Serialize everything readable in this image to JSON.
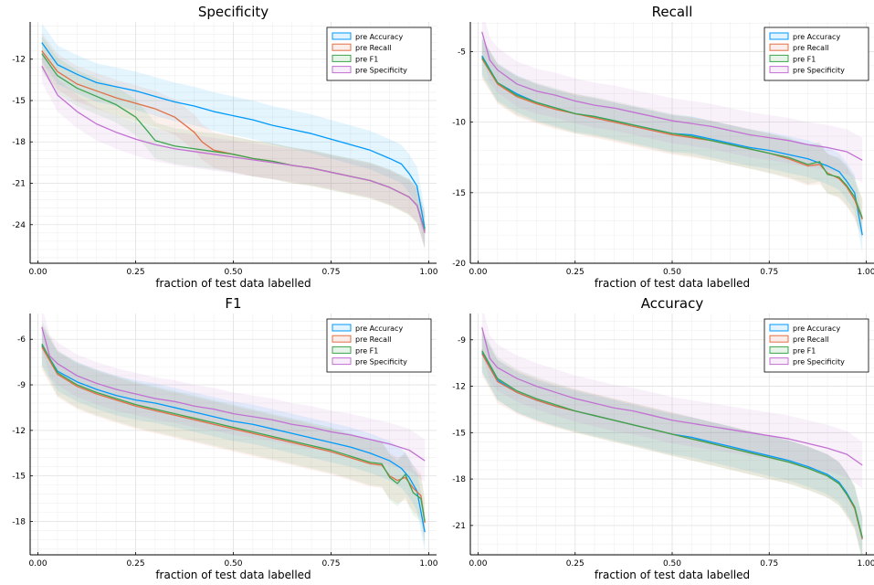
{
  "colors": {
    "pre Accuracy": "#009AFA",
    "pre Recall": "#E26F46",
    "pre F1": "#3DA44D",
    "pre Specificity": "#C271D2"
  },
  "chart_data": [
    {
      "type": "line",
      "title": "Specificity",
      "xlabel": "fraction of test data labelled",
      "ylabel": "",
      "xlim": [
        -0.02,
        1.02
      ],
      "ylim": [
        -26.8,
        -9.3
      ],
      "xticks": [
        0.0,
        0.25,
        0.5,
        0.75,
        1.0
      ],
      "xtick_labels": [
        "0.00",
        "0.25",
        "0.50",
        "0.75",
        "1.00"
      ],
      "yticks": [
        -24,
        -21,
        -18,
        -15,
        -12
      ],
      "ytick_labels": [
        "-24",
        "-21",
        "-18",
        "-15",
        "-12"
      ],
      "grid": true,
      "legend": "top-right",
      "series": [
        {
          "name": "pre Accuracy",
          "band": 1.4,
          "x": [
            0.01,
            0.05,
            0.1,
            0.15,
            0.2,
            0.25,
            0.3,
            0.35,
            0.4,
            0.45,
            0.5,
            0.55,
            0.6,
            0.65,
            0.7,
            0.75,
            0.8,
            0.85,
            0.9,
            0.93,
            0.95,
            0.97,
            0.99
          ],
          "y": [
            -10.8,
            -12.4,
            -13.1,
            -13.7,
            -14.0,
            -14.3,
            -14.7,
            -15.1,
            -15.4,
            -15.8,
            -16.1,
            -16.4,
            -16.8,
            -17.1,
            -17.4,
            -17.8,
            -18.2,
            -18.6,
            -19.2,
            -19.6,
            -20.3,
            -21.2,
            -24.3
          ]
        },
        {
          "name": "pre Recall",
          "band": 1.3,
          "x": [
            0.01,
            0.05,
            0.1,
            0.15,
            0.2,
            0.25,
            0.3,
            0.35,
            0.4,
            0.42,
            0.45,
            0.5,
            0.55,
            0.6,
            0.65,
            0.7,
            0.75,
            0.8,
            0.85,
            0.9,
            0.95,
            0.97,
            0.99
          ],
          "y": [
            -11.4,
            -12.9,
            -13.8,
            -14.3,
            -14.8,
            -15.2,
            -15.6,
            -16.2,
            -17.3,
            -18.0,
            -18.6,
            -18.9,
            -19.2,
            -19.4,
            -19.7,
            -19.9,
            -20.2,
            -20.5,
            -20.8,
            -21.3,
            -22.0,
            -22.6,
            -24.5
          ]
        },
        {
          "name": "pre F1",
          "band": 1.3,
          "x": [
            0.01,
            0.05,
            0.1,
            0.15,
            0.2,
            0.25,
            0.28,
            0.3,
            0.35,
            0.4,
            0.45,
            0.5,
            0.55,
            0.6,
            0.65,
            0.7,
            0.75,
            0.8,
            0.85,
            0.9,
            0.95,
            0.97,
            0.99
          ],
          "y": [
            -11.6,
            -13.2,
            -14.1,
            -14.7,
            -15.3,
            -16.2,
            -17.2,
            -17.9,
            -18.3,
            -18.5,
            -18.7,
            -18.9,
            -19.2,
            -19.4,
            -19.7,
            -19.9,
            -20.2,
            -20.5,
            -20.8,
            -21.3,
            -22.0,
            -22.6,
            -24.4
          ]
        },
        {
          "name": "pre Specificity",
          "band": 1.2,
          "x": [
            0.01,
            0.05,
            0.1,
            0.15,
            0.2,
            0.25,
            0.3,
            0.35,
            0.4,
            0.45,
            0.5,
            0.55,
            0.6,
            0.65,
            0.7,
            0.75,
            0.8,
            0.85,
            0.9,
            0.95,
            0.97,
            0.99
          ],
          "y": [
            -12.5,
            -14.6,
            -15.8,
            -16.7,
            -17.3,
            -17.8,
            -18.2,
            -18.5,
            -18.7,
            -18.9,
            -19.1,
            -19.3,
            -19.5,
            -19.7,
            -19.9,
            -20.2,
            -20.5,
            -20.8,
            -21.3,
            -22.0,
            -22.6,
            -24.6
          ]
        }
      ]
    },
    {
      "type": "line",
      "title": "Recall",
      "xlabel": "fraction of test data labelled",
      "ylabel": "",
      "xlim": [
        -0.02,
        1.02
      ],
      "ylim": [
        -20,
        -2.9
      ],
      "xticks": [
        0.0,
        0.25,
        0.5,
        0.75,
        1.0
      ],
      "xtick_labels": [
        "0.00",
        "0.25",
        "0.50",
        "0.75",
        "1.00"
      ],
      "yticks": [
        -20,
        -15,
        -10,
        -5
      ],
      "ytick_labels": [
        "-20",
        "-15",
        "-10",
        "-5"
      ],
      "grid": true,
      "legend": "top-right",
      "series": [
        {
          "name": "pre Accuracy",
          "band": 1.3,
          "x": [
            0.01,
            0.05,
            0.1,
            0.15,
            0.2,
            0.25,
            0.3,
            0.35,
            0.4,
            0.45,
            0.5,
            0.55,
            0.6,
            0.65,
            0.7,
            0.75,
            0.8,
            0.85,
            0.9,
            0.93,
            0.95,
            0.97,
            0.99
          ],
          "y": [
            -5.3,
            -7.2,
            -8.0,
            -8.6,
            -9.0,
            -9.4,
            -9.6,
            -9.9,
            -10.2,
            -10.5,
            -10.8,
            -10.9,
            -11.2,
            -11.5,
            -11.8,
            -12.0,
            -12.3,
            -12.6,
            -13.1,
            -13.5,
            -14.2,
            -15.0,
            -18.0
          ]
        },
        {
          "name": "pre Recall",
          "band": 1.4,
          "x": [
            0.01,
            0.05,
            0.1,
            0.15,
            0.2,
            0.25,
            0.3,
            0.35,
            0.4,
            0.45,
            0.5,
            0.55,
            0.6,
            0.65,
            0.7,
            0.75,
            0.8,
            0.85,
            0.88,
            0.9,
            0.93,
            0.95,
            0.97,
            0.99
          ],
          "y": [
            -5.5,
            -7.3,
            -8.2,
            -8.7,
            -9.1,
            -9.4,
            -9.7,
            -10.0,
            -10.3,
            -10.6,
            -10.9,
            -11.1,
            -11.3,
            -11.6,
            -11.9,
            -12.2,
            -12.6,
            -13.1,
            -13.0,
            -13.6,
            -14.0,
            -14.6,
            -15.5,
            -16.9
          ]
        },
        {
          "name": "pre F1",
          "band": 1.4,
          "x": [
            0.01,
            0.05,
            0.1,
            0.15,
            0.2,
            0.25,
            0.3,
            0.35,
            0.4,
            0.45,
            0.5,
            0.55,
            0.6,
            0.65,
            0.7,
            0.75,
            0.8,
            0.85,
            0.88,
            0.9,
            0.93,
            0.95,
            0.97,
            0.99
          ],
          "y": [
            -5.4,
            -7.2,
            -8.1,
            -8.6,
            -9.0,
            -9.4,
            -9.6,
            -9.9,
            -10.2,
            -10.5,
            -10.8,
            -11.0,
            -11.3,
            -11.6,
            -11.9,
            -12.2,
            -12.5,
            -13.0,
            -12.8,
            -13.7,
            -13.9,
            -14.5,
            -15.3,
            -16.8
          ]
        },
        {
          "name": "pre Specificity",
          "band": 1.6,
          "x": [
            0.01,
            0.03,
            0.05,
            0.1,
            0.15,
            0.2,
            0.25,
            0.3,
            0.35,
            0.4,
            0.45,
            0.5,
            0.55,
            0.6,
            0.65,
            0.7,
            0.75,
            0.8,
            0.85,
            0.9,
            0.95,
            0.99
          ],
          "y": [
            -3.6,
            -5.6,
            -6.3,
            -7.3,
            -7.8,
            -8.1,
            -8.5,
            -8.8,
            -9.0,
            -9.3,
            -9.6,
            -9.9,
            -10.1,
            -10.3,
            -10.6,
            -10.9,
            -11.1,
            -11.3,
            -11.6,
            -11.8,
            -12.1,
            -12.7
          ]
        }
      ]
    },
    {
      "type": "line",
      "title": "F1",
      "xlabel": "fraction of test data labelled",
      "ylabel": "",
      "xlim": [
        -0.02,
        1.02
      ],
      "ylim": [
        -20.2,
        -4.3
      ],
      "xticks": [
        0.0,
        0.25,
        0.5,
        0.75,
        1.0
      ],
      "xtick_labels": [
        "0.00",
        "0.25",
        "0.50",
        "0.75",
        "1.00"
      ],
      "yticks": [
        -18,
        -15,
        -12,
        -9,
        -6
      ],
      "ytick_labels": [
        "-18",
        "-15",
        "-12",
        "-9",
        "-6"
      ],
      "grid": true,
      "legend": "top-right",
      "series": [
        {
          "name": "pre Accuracy",
          "band": 1.3,
          "x": [
            0.01,
            0.05,
            0.1,
            0.15,
            0.2,
            0.25,
            0.3,
            0.35,
            0.4,
            0.45,
            0.5,
            0.55,
            0.6,
            0.65,
            0.7,
            0.75,
            0.8,
            0.85,
            0.9,
            0.93,
            0.95,
            0.97,
            0.99
          ],
          "y": [
            -6.4,
            -8.1,
            -8.8,
            -9.3,
            -9.7,
            -10.0,
            -10.2,
            -10.5,
            -10.8,
            -11.1,
            -11.4,
            -11.6,
            -11.9,
            -12.2,
            -12.5,
            -12.8,
            -13.1,
            -13.5,
            -14.0,
            -14.5,
            -15.1,
            -16.0,
            -18.7
          ]
        },
        {
          "name": "pre Recall",
          "band": 1.5,
          "x": [
            0.01,
            0.05,
            0.1,
            0.15,
            0.2,
            0.25,
            0.3,
            0.35,
            0.4,
            0.45,
            0.5,
            0.55,
            0.6,
            0.65,
            0.7,
            0.75,
            0.8,
            0.85,
            0.88,
            0.9,
            0.92,
            0.94,
            0.96,
            0.98,
            0.99
          ],
          "y": [
            -6.5,
            -8.3,
            -9.1,
            -9.6,
            -10.0,
            -10.4,
            -10.7,
            -11.0,
            -11.3,
            -11.6,
            -11.9,
            -12.2,
            -12.5,
            -12.8,
            -13.1,
            -13.4,
            -13.8,
            -14.2,
            -14.3,
            -15.0,
            -15.3,
            -15.1,
            -15.8,
            -16.3,
            -18.1
          ]
        },
        {
          "name": "pre F1",
          "band": 1.5,
          "x": [
            0.01,
            0.05,
            0.1,
            0.15,
            0.2,
            0.25,
            0.3,
            0.35,
            0.4,
            0.45,
            0.5,
            0.55,
            0.6,
            0.65,
            0.7,
            0.75,
            0.8,
            0.85,
            0.88,
            0.9,
            0.92,
            0.94,
            0.96,
            0.98,
            0.99
          ],
          "y": [
            -6.3,
            -8.2,
            -9.0,
            -9.5,
            -9.9,
            -10.3,
            -10.6,
            -10.9,
            -11.2,
            -11.5,
            -11.8,
            -12.1,
            -12.4,
            -12.7,
            -13.0,
            -13.3,
            -13.7,
            -14.1,
            -14.2,
            -15.1,
            -15.5,
            -14.9,
            -16.1,
            -16.5,
            -18.0
          ]
        },
        {
          "name": "pre Specificity",
          "band": 1.4,
          "x": [
            0.01,
            0.03,
            0.05,
            0.1,
            0.15,
            0.2,
            0.25,
            0.3,
            0.35,
            0.4,
            0.45,
            0.5,
            0.55,
            0.6,
            0.65,
            0.7,
            0.75,
            0.8,
            0.85,
            0.9,
            0.95,
            0.99
          ],
          "y": [
            -5.2,
            -7.1,
            -7.6,
            -8.4,
            -8.9,
            -9.3,
            -9.6,
            -9.9,
            -10.1,
            -10.4,
            -10.6,
            -10.9,
            -11.1,
            -11.3,
            -11.6,
            -11.8,
            -12.1,
            -12.3,
            -12.6,
            -12.9,
            -13.3,
            -14.0
          ]
        }
      ]
    },
    {
      "type": "line",
      "title": "Accuracy",
      "xlabel": "fraction of test data labelled",
      "ylabel": "",
      "xlim": [
        -0.02,
        1.02
      ],
      "ylim": [
        -22.9,
        -7.3
      ],
      "xticks": [
        0.0,
        0.25,
        0.5,
        0.75,
        1.0
      ],
      "xtick_labels": [
        "0.00",
        "0.25",
        "0.50",
        "0.75",
        "1.00"
      ],
      "yticks": [
        -21,
        -18,
        -15,
        -12,
        -9
      ],
      "ytick_labels": [
        "-21",
        "-18",
        "-15",
        "-12",
        "-9"
      ],
      "grid": true,
      "legend": "top-right",
      "series": [
        {
          "name": "pre Accuracy",
          "band": 1.3,
          "x": [
            0.01,
            0.05,
            0.1,
            0.15,
            0.2,
            0.25,
            0.3,
            0.35,
            0.4,
            0.45,
            0.5,
            0.55,
            0.6,
            0.65,
            0.7,
            0.75,
            0.8,
            0.85,
            0.9,
            0.93,
            0.95,
            0.97,
            0.99
          ],
          "y": [
            -9.8,
            -11.6,
            -12.4,
            -12.9,
            -13.3,
            -13.6,
            -13.9,
            -14.2,
            -14.5,
            -14.8,
            -15.1,
            -15.3,
            -15.6,
            -15.9,
            -16.2,
            -16.5,
            -16.8,
            -17.2,
            -17.7,
            -18.2,
            -18.9,
            -19.8,
            -21.8
          ]
        },
        {
          "name": "pre Recall",
          "band": 1.4,
          "x": [
            0.01,
            0.05,
            0.1,
            0.15,
            0.2,
            0.25,
            0.3,
            0.35,
            0.4,
            0.45,
            0.5,
            0.55,
            0.6,
            0.65,
            0.7,
            0.75,
            0.8,
            0.85,
            0.9,
            0.93,
            0.95,
            0.97,
            0.99
          ],
          "y": [
            -9.9,
            -11.7,
            -12.4,
            -12.9,
            -13.3,
            -13.6,
            -13.9,
            -14.2,
            -14.5,
            -14.8,
            -15.1,
            -15.4,
            -15.7,
            -16.0,
            -16.3,
            -16.6,
            -16.9,
            -17.3,
            -17.8,
            -18.3,
            -19.0,
            -19.9,
            -21.9
          ]
        },
        {
          "name": "pre F1",
          "band": 1.4,
          "x": [
            0.01,
            0.05,
            0.1,
            0.15,
            0.2,
            0.25,
            0.3,
            0.35,
            0.4,
            0.45,
            0.5,
            0.55,
            0.6,
            0.65,
            0.7,
            0.75,
            0.8,
            0.85,
            0.9,
            0.93,
            0.95,
            0.97,
            0.99
          ],
          "y": [
            -9.7,
            -11.5,
            -12.3,
            -12.8,
            -13.2,
            -13.6,
            -13.9,
            -14.2,
            -14.5,
            -14.8,
            -15.1,
            -15.4,
            -15.7,
            -16.0,
            -16.3,
            -16.6,
            -16.9,
            -17.3,
            -17.8,
            -18.3,
            -19.0,
            -19.8,
            -21.8
          ]
        },
        {
          "name": "pre Specificity",
          "band": 1.5,
          "x": [
            0.01,
            0.03,
            0.05,
            0.1,
            0.15,
            0.2,
            0.25,
            0.3,
            0.35,
            0.4,
            0.45,
            0.5,
            0.55,
            0.6,
            0.65,
            0.7,
            0.75,
            0.8,
            0.85,
            0.9,
            0.95,
            0.99
          ],
          "y": [
            -8.2,
            -10.2,
            -10.8,
            -11.5,
            -12.0,
            -12.4,
            -12.8,
            -13.1,
            -13.4,
            -13.6,
            -13.9,
            -14.2,
            -14.4,
            -14.6,
            -14.8,
            -15.0,
            -15.2,
            -15.4,
            -15.7,
            -16.0,
            -16.4,
            -17.1
          ]
        }
      ]
    }
  ]
}
